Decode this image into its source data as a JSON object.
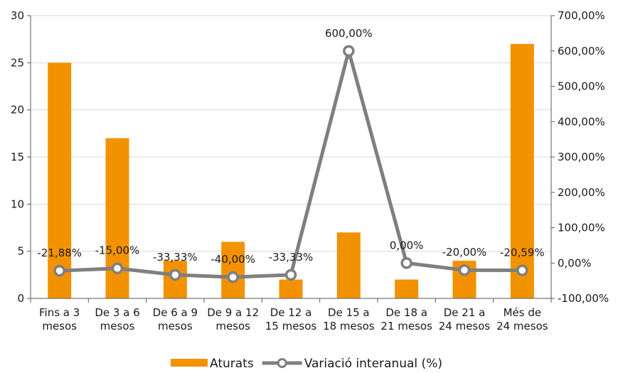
{
  "chart_data": {
    "type": "bar",
    "categories": [
      [
        "Fins a 3",
        "mesos"
      ],
      [
        "De 3 a 6",
        "mesos"
      ],
      [
        "De 6 a 9",
        "mesos"
      ],
      [
        "De 9 a 12",
        "mesos"
      ],
      [
        "De 12 a",
        "15 mesos"
      ],
      [
        "De 15 a",
        "18 mesos"
      ],
      [
        "De 18 a",
        "21 mesos"
      ],
      [
        "De 21 a",
        "24 mesos"
      ],
      [
        "Més de",
        "24 mesos"
      ]
    ],
    "series": [
      {
        "name": "Aturats",
        "type": "bar",
        "axis": "left",
        "color": "#f39200",
        "values": [
          25,
          17,
          4,
          6,
          2,
          7,
          2,
          4,
          27
        ]
      },
      {
        "name": "Variació interanual (%)",
        "type": "line",
        "axis": "right",
        "color": "#7f7f7f",
        "values": [
          -21.88,
          -15.0,
          -33.33,
          -40.0,
          -33.33,
          600.0,
          0.0,
          -20.0,
          -20.59
        ],
        "labels": [
          "-21,88%",
          "-15,00%",
          "-33,33%",
          "-40,00%",
          "-33,33%",
          "600,00%",
          "0,00%",
          "-20,00%",
          "-20,59%"
        ]
      }
    ],
    "left_axis": {
      "ylim": [
        0,
        30
      ],
      "ticks": [
        0,
        5,
        10,
        15,
        20,
        25,
        30
      ],
      "tick_labels": [
        "0",
        "5",
        "10",
        "15",
        "20",
        "25",
        "30"
      ]
    },
    "right_axis": {
      "ylim": [
        -100,
        700
      ],
      "ticks": [
        -100,
        0,
        100,
        200,
        300,
        400,
        500,
        600,
        700
      ],
      "tick_labels": [
        "-100,00%",
        "0,00%",
        "100,00%",
        "200,00%",
        "300,00%",
        "400,00%",
        "500,00%",
        "600,00%",
        "700,00%"
      ]
    },
    "grid": true,
    "legend": "bottom"
  }
}
